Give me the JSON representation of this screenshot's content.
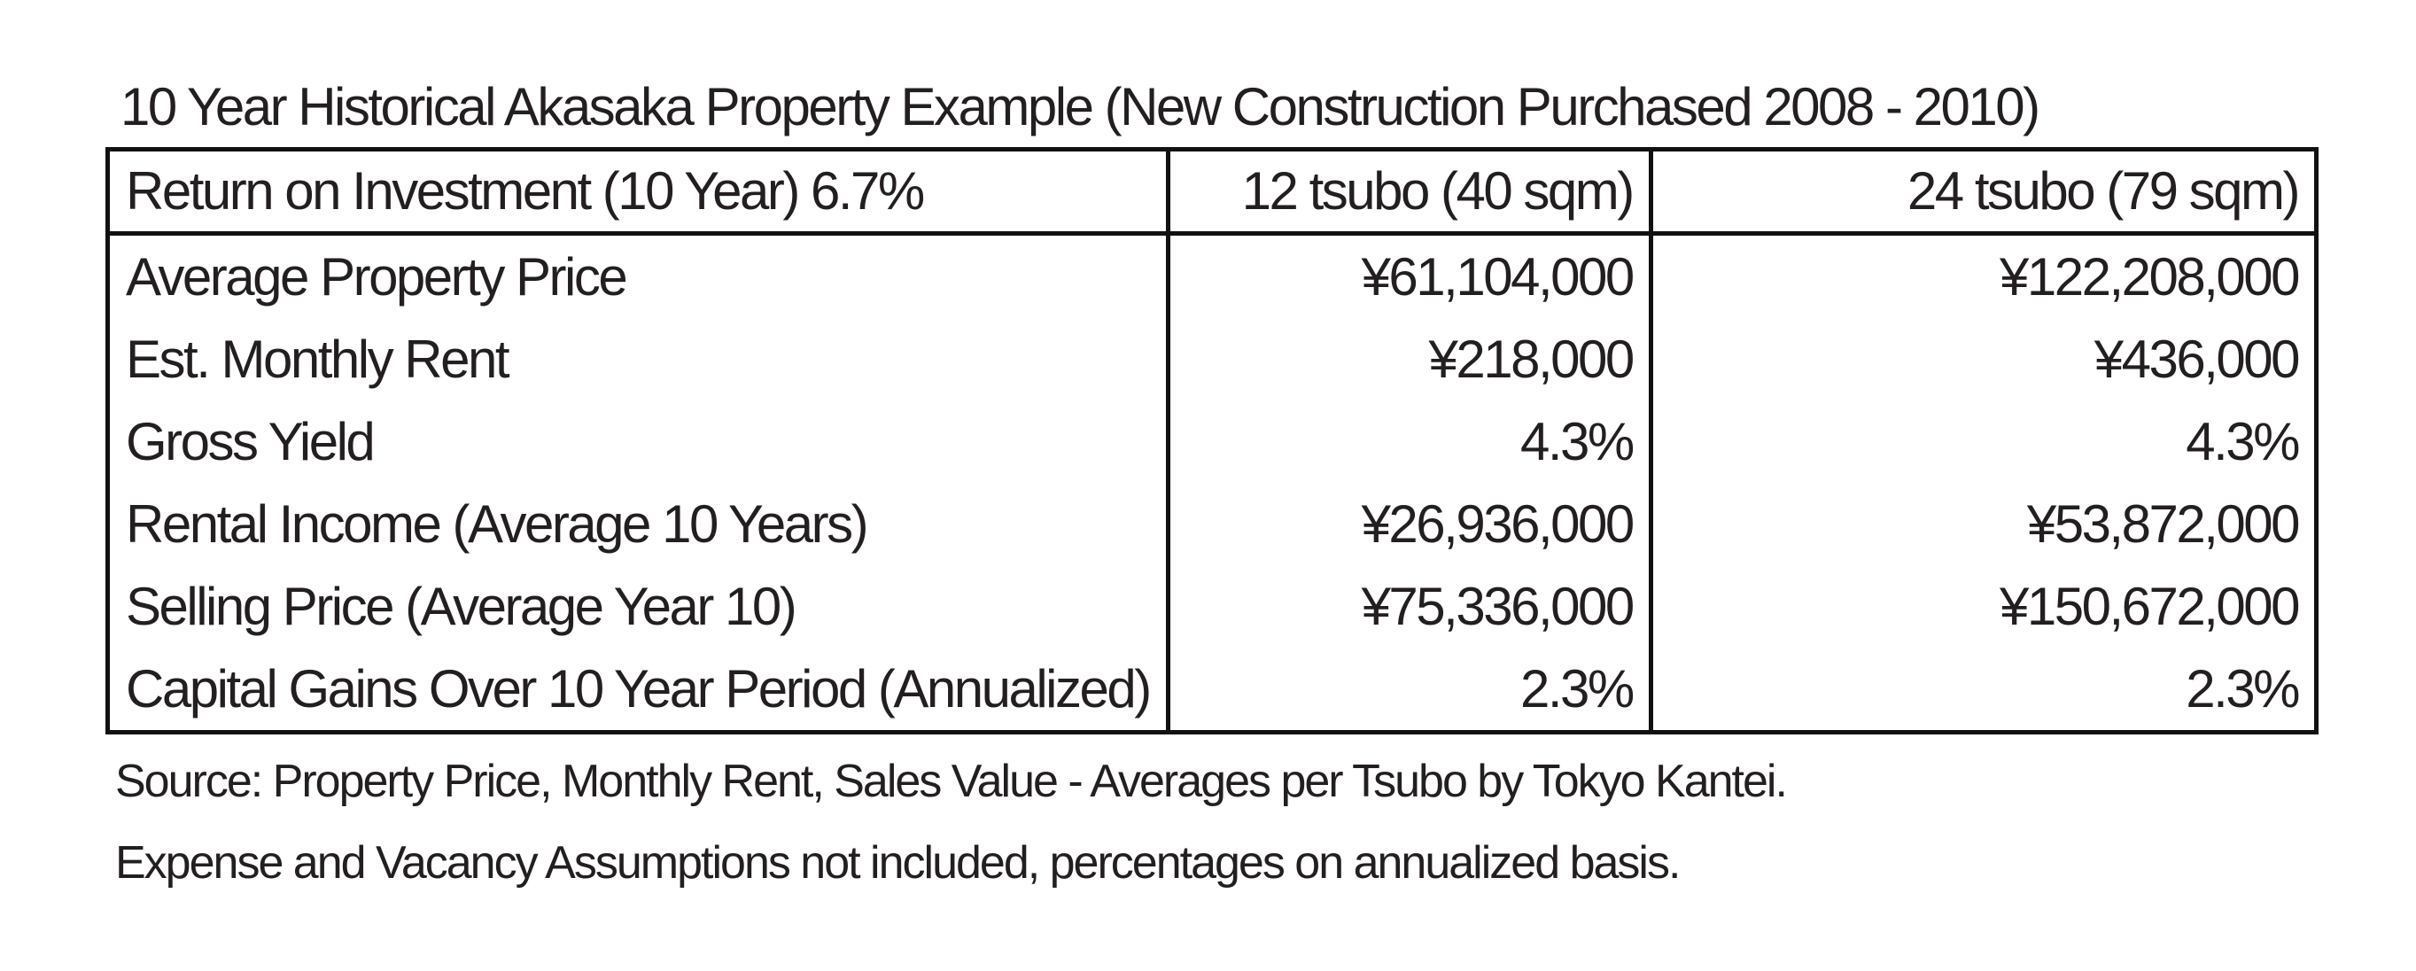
{
  "title": "10 Year Historical Akasaka Property Example (New Construction Purchased 2008 - 2010)",
  "table": {
    "header": [
      "Return on Investment (10 Year) 6.7%",
      "12 tsubo (40 sqm)",
      "24 tsubo (79 sqm)"
    ],
    "rows": [
      [
        "Average Property Price",
        "¥61,104,000",
        "¥122,208,000"
      ],
      [
        "Est. Monthly Rent",
        "¥218,000",
        "¥436,000"
      ],
      [
        "Gross Yield",
        "4.3%",
        "4.3%"
      ],
      [
        "Rental Income (Average 10 Years)",
        "¥26,936,000",
        "¥53,872,000"
      ],
      [
        "Selling Price (Average Year 10)",
        "¥75,336,000",
        "¥150,672,000"
      ],
      [
        "Capital Gains Over 10 Year Period (Annualized)",
        "2.3%",
        "2.3%"
      ]
    ]
  },
  "notes": [
    "Source: Property Price, Monthly Rent, Sales Value - Averages per Tsubo by Tokyo Kantei.",
    "Expense and Vacancy Assumptions not included, percentages on annualized basis."
  ]
}
